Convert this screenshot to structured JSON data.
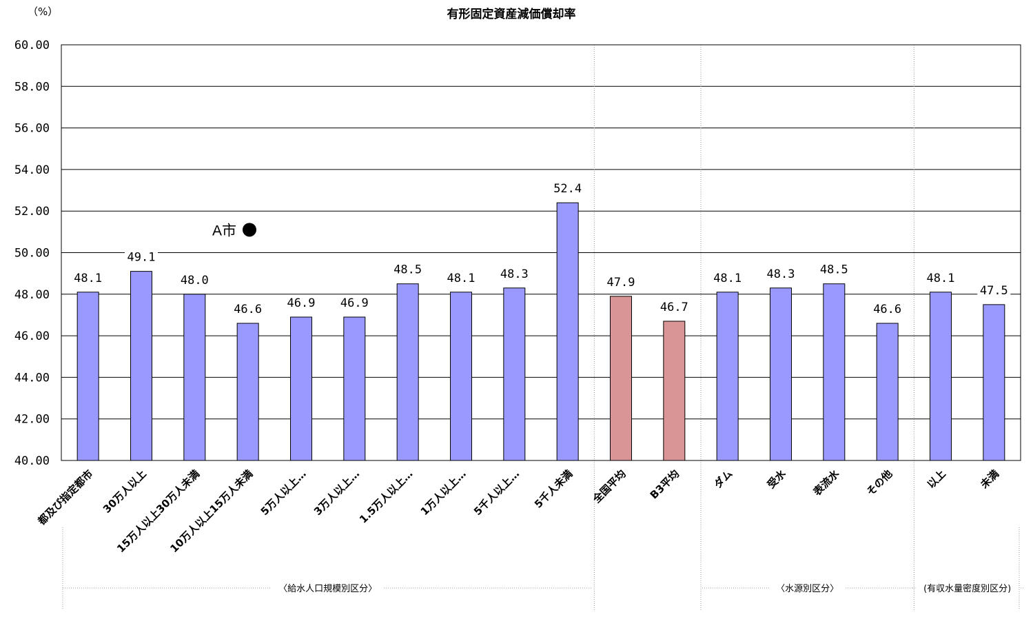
{
  "chart_data": {
    "type": "bar",
    "title": "有形固定資産減価償却率",
    "unit_label": "（%）",
    "ylim": [
      40,
      60
    ],
    "y_ticks": [
      "60.00",
      "58.00",
      "56.00",
      "54.00",
      "52.00",
      "50.00",
      "48.00",
      "46.00",
      "44.00",
      "42.00",
      "40.00"
    ],
    "y_tick_values": [
      60,
      58,
      56,
      54,
      52,
      50,
      48,
      46,
      44,
      42,
      40
    ],
    "grid": true,
    "categories": [
      "都及び指定都市",
      "30万人以上",
      "15万人以上30万人未満",
      "10万人以上15万人未満",
      "5万人以上…",
      "3万人以上…",
      "1.5万人以上…",
      "1万人以上…",
      "5千人以上…",
      "5千人未満",
      "全国平均",
      "B3平均",
      "ダム",
      "受水",
      "表流水",
      "その他",
      "以上",
      "未満"
    ],
    "values": [
      48.1,
      49.1,
      48.0,
      46.6,
      46.9,
      46.9,
      48.5,
      48.1,
      48.3,
      52.4,
      47.9,
      46.7,
      48.1,
      48.3,
      48.5,
      46.6,
      48.1,
      47.5
    ],
    "value_labels": [
      "48.1",
      "49.1",
      "48.0",
      "46.6",
      "46.9",
      "46.9",
      "48.5",
      "48.1",
      "48.3",
      "52.4",
      "47.9",
      "46.7",
      "48.1",
      "48.3",
      "48.5",
      "46.6",
      "48.1",
      "47.5"
    ],
    "bar_colors": [
      "#9999ff",
      "#9999ff",
      "#9999ff",
      "#9999ff",
      "#9999ff",
      "#9999ff",
      "#9999ff",
      "#9999ff",
      "#9999ff",
      "#9999ff",
      "#d99595",
      "#d99595",
      "#9999ff",
      "#9999ff",
      "#9999ff",
      "#9999ff",
      "#9999ff",
      "#9999ff"
    ],
    "groups": [
      {
        "label": "〈給水人口規模別区分〉",
        "from": 0,
        "to": 9
      },
      {
        "label": "〈水源別区分〉",
        "from": 12,
        "to": 15
      },
      {
        "label": "(有収水量密度別区分)",
        "from": 16,
        "to": 17
      }
    ],
    "marker": {
      "label": "A市",
      "value": 51.1
    }
  }
}
